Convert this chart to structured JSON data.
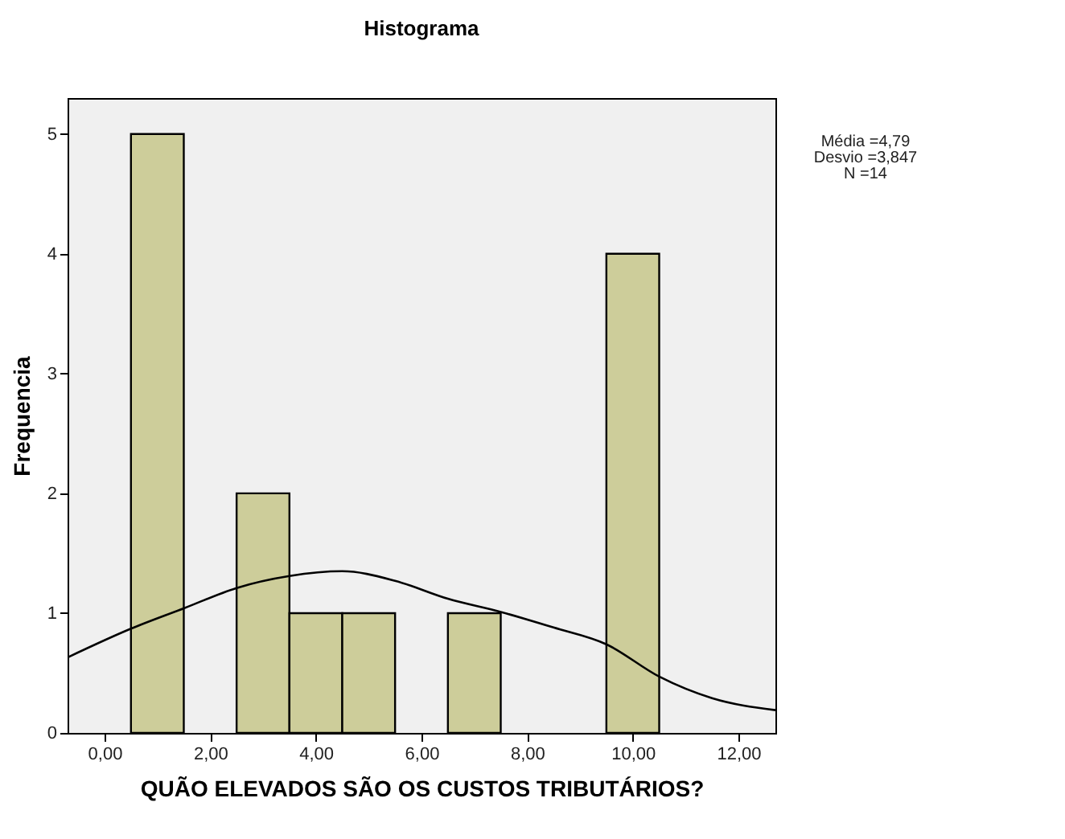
{
  "chart_data": {
    "type": "histogram",
    "title": "Histograma",
    "xlabel": "QUÃO ELEVADOS SÃO OS CUSTOS TRIBUTÁRIOS?",
    "ylabel": "Frequencia",
    "bins": [
      0.5,
      1.5,
      2.5,
      3.5,
      4.5,
      5.5,
      6.5,
      7.5,
      8.5,
      9.5,
      10.5
    ],
    "values": [
      5,
      0,
      2,
      1,
      1,
      0,
      1,
      0,
      0,
      4
    ],
    "color": "#cdcd9a",
    "series": [
      {
        "type": "line",
        "color": "#000000",
        "x": [
          -0.7,
          0.5,
          1.5,
          2.5,
          3.5,
          4.5,
          5.5,
          6.5,
          7.5,
          8.5,
          9.5,
          10.5,
          11.5,
          12.7
        ],
        "values": [
          0.63,
          0.87,
          1.04,
          1.21,
          1.31,
          1.35,
          1.27,
          1.12,
          1.01,
          0.88,
          0.74,
          0.47,
          0.29,
          0.19
        ]
      }
    ],
    "xlim": [
      -0.7,
      12.7
    ],
    "ylim": [
      0,
      5.3
    ],
    "xticks": [
      {
        "value": 0,
        "label": "0,00"
      },
      {
        "value": 2,
        "label": "2,00"
      },
      {
        "value": 4,
        "label": "4,00"
      },
      {
        "value": 6,
        "label": "6,00"
      },
      {
        "value": 8,
        "label": "8,00"
      },
      {
        "value": 10,
        "label": "10,00"
      },
      {
        "value": 12,
        "label": "12,00"
      }
    ],
    "yticks": [
      0,
      1,
      2,
      3,
      4,
      5
    ],
    "grid": false,
    "annotations": [
      "Média =4,79",
      "Desvio =3,847",
      "N =14"
    ]
  }
}
